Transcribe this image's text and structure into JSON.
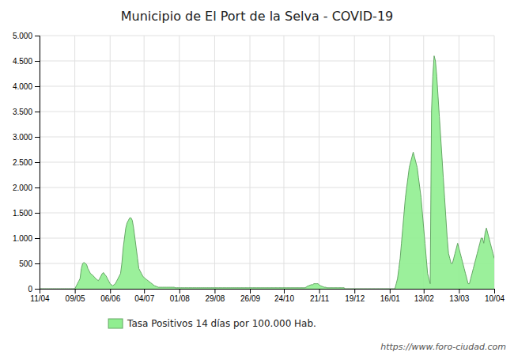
{
  "chart_data": {
    "type": "area",
    "title": "Municipio de El Port de la Selva - COVID-19",
    "categories": [
      "11/04",
      null,
      null,
      null,
      null,
      null,
      null,
      null,
      null,
      null,
      null,
      null,
      null,
      null,
      null,
      null,
      null,
      null,
      null,
      null,
      null,
      null,
      null,
      null,
      null,
      null,
      null,
      "09/05",
      null,
      null,
      null,
      null,
      null,
      null,
      null,
      null,
      null,
      null,
      null,
      null,
      null,
      null,
      null,
      null,
      null,
      null,
      null,
      null,
      null,
      null,
      null,
      null,
      null,
      null,
      "06/06",
      null,
      null,
      null,
      null,
      null,
      null,
      null,
      null,
      null,
      null,
      null,
      null,
      null,
      null,
      null,
      null,
      null,
      null,
      null,
      null,
      null,
      null,
      null,
      null,
      null,
      "04/07",
      null,
      null,
      null,
      null,
      null,
      null,
      null,
      null,
      null,
      null,
      null,
      null,
      null,
      null,
      null,
      null,
      null,
      null,
      null,
      null,
      null,
      null,
      null,
      null,
      null,
      null,
      "01/08",
      null,
      null,
      null,
      null,
      null,
      null,
      null,
      null,
      null,
      null,
      null,
      null,
      null,
      null,
      null,
      null,
      null,
      null,
      null,
      null,
      null,
      null,
      null,
      null,
      null,
      null,
      "29/08",
      null,
      null,
      null,
      null,
      null,
      null,
      null,
      null,
      null,
      null,
      null,
      null,
      null,
      null,
      null,
      null,
      null,
      null,
      null,
      null,
      null,
      null,
      null,
      null,
      null,
      null,
      "26/09",
      null,
      null,
      null,
      null,
      null,
      null,
      null,
      null,
      null,
      null,
      null,
      null,
      null,
      null,
      null,
      null,
      null,
      null,
      null,
      null,
      null,
      null,
      null,
      null,
      null,
      "24/10",
      null,
      null,
      null,
      null,
      null,
      null,
      null,
      null,
      null,
      null,
      null,
      null,
      null,
      null,
      null,
      null,
      null,
      null,
      null,
      null,
      null,
      null,
      null,
      null,
      null,
      null,
      "21/11",
      null,
      null,
      null,
      null,
      null,
      null,
      null,
      null,
      null,
      null,
      null,
      null,
      null,
      null,
      null,
      null,
      null,
      null,
      null,
      null,
      null,
      null,
      null,
      null,
      null,
      null,
      "19/12",
      null,
      null,
      null,
      null,
      null,
      null,
      null,
      null,
      null,
      null,
      null,
      null,
      null,
      null,
      null,
      null,
      null,
      null,
      null,
      null,
      null,
      null,
      null,
      null,
      null,
      null,
      "16/01",
      null,
      null,
      null,
      null,
      null,
      null,
      null,
      null,
      null,
      null,
      null,
      null,
      null,
      null,
      null,
      null,
      null,
      null,
      null,
      null,
      null,
      null,
      null,
      null,
      null,
      "13/02",
      null,
      null,
      null,
      null,
      null,
      null,
      null,
      null,
      null,
      null,
      null,
      null,
      null,
      null,
      null,
      null,
      null,
      null,
      null,
      null,
      null,
      null,
      null,
      null,
      null,
      null,
      "13/03",
      null,
      null,
      null,
      null,
      null,
      null,
      null,
      null,
      null,
      null,
      null,
      null,
      null,
      null,
      null,
      null,
      null,
      null,
      null,
      null,
      null,
      null,
      null,
      null,
      null,
      null,
      "10/04"
    ],
    "series": [
      {
        "name": "Tasa Positivos 14 días por 100.000 Hab.",
        "color": "#90ee90",
        "values": [
          0,
          0,
          0,
          0,
          0,
          0,
          0,
          0,
          0,
          0,
          0,
          0,
          0,
          0,
          0,
          0,
          0,
          0,
          0,
          0,
          0,
          0,
          0,
          0,
          0,
          0,
          0,
          0,
          50,
          100,
          150,
          200,
          400,
          500,
          520,
          500,
          480,
          400,
          350,
          300,
          280,
          260,
          230,
          200,
          180,
          160,
          200,
          250,
          300,
          320,
          280,
          250,
          200,
          150,
          100,
          80,
          60,
          80,
          100,
          150,
          200,
          250,
          300,
          500,
          800,
          1000,
          1200,
          1300,
          1350,
          1400,
          1400,
          1350,
          1200,
          1000,
          800,
          600,
          400,
          350,
          300,
          250,
          220,
          200,
          180,
          160,
          140,
          120,
          100,
          80,
          60,
          50,
          40,
          30,
          30,
          30,
          30,
          30,
          30,
          30,
          30,
          30,
          30,
          30,
          30,
          30,
          20,
          20,
          20,
          20,
          20,
          20,
          20,
          20,
          20,
          20,
          20,
          20,
          20,
          20,
          20,
          20,
          20,
          20,
          20,
          20,
          20,
          20,
          20,
          20,
          20,
          20,
          20,
          20,
          20,
          20,
          20,
          20,
          20,
          20,
          20,
          20,
          20,
          20,
          20,
          20,
          20,
          20,
          20,
          20,
          20,
          20,
          20,
          20,
          20,
          20,
          20,
          20,
          20,
          20,
          20,
          20,
          20,
          20,
          20,
          20,
          20,
          20,
          20,
          20,
          20,
          20,
          20,
          20,
          20,
          20,
          20,
          20,
          20,
          20,
          20,
          20,
          20,
          20,
          20,
          20,
          20,
          20,
          20,
          20,
          20,
          20,
          20,
          20,
          20,
          20,
          20,
          20,
          20,
          20,
          20,
          20,
          20,
          20,
          20,
          20,
          30,
          50,
          60,
          70,
          80,
          80,
          100,
          100,
          100,
          100,
          80,
          60,
          50,
          40,
          30,
          30,
          20,
          20,
          20,
          20,
          20,
          20,
          20,
          20,
          20,
          20,
          20,
          20,
          20,
          20,
          0,
          0,
          0,
          0,
          0,
          0,
          0,
          0,
          0,
          0,
          0,
          0,
          0,
          0,
          0,
          0,
          0,
          0,
          0,
          0,
          0,
          0,
          0,
          0,
          0,
          0,
          0,
          0,
          0,
          0,
          0,
          0,
          0,
          0,
          0,
          0,
          0,
          0,
          0,
          100,
          200,
          400,
          600,
          900,
          1200,
          1500,
          1800,
          2000,
          2200,
          2400,
          2500,
          2600,
          2700,
          2600,
          2500,
          2400,
          2200,
          2000,
          1800,
          1500,
          1200,
          900,
          600,
          300,
          200,
          100,
          3500,
          4200,
          4600,
          4500,
          4200,
          3800,
          3400,
          3000,
          2600,
          2200,
          1800,
          1400,
          1000,
          700,
          600,
          500,
          500,
          600,
          700,
          800,
          900,
          800,
          700,
          600,
          500,
          400,
          300,
          200,
          100,
          100,
          200,
          300,
          400,
          500,
          600,
          700,
          800,
          900,
          1000,
          1000,
          900,
          1100,
          1200,
          1100,
          1000,
          900,
          800,
          700,
          600
        ]
      }
    ],
    "ylim": [
      0,
      5000
    ],
    "yticks": [
      0,
      500,
      {
        "value": 1000,
        "label": "1.000"
      },
      {
        "value": 1500,
        "label": "1.500"
      },
      {
        "value": 2000,
        "label": "2.000"
      },
      {
        "value": 2500,
        "label": "2.500"
      },
      {
        "value": 3000,
        "label": "3.000"
      },
      {
        "value": 3500,
        "label": "3.500"
      },
      {
        "value": 4000,
        "label": "4.000"
      },
      {
        "value": 4500,
        "label": "4.500"
      },
      {
        "value": 5000,
        "label": "5.000"
      }
    ],
    "grid": true,
    "legend": "bottom",
    "annotations": [
      "https://www.foro-ciudad.com"
    ]
  }
}
